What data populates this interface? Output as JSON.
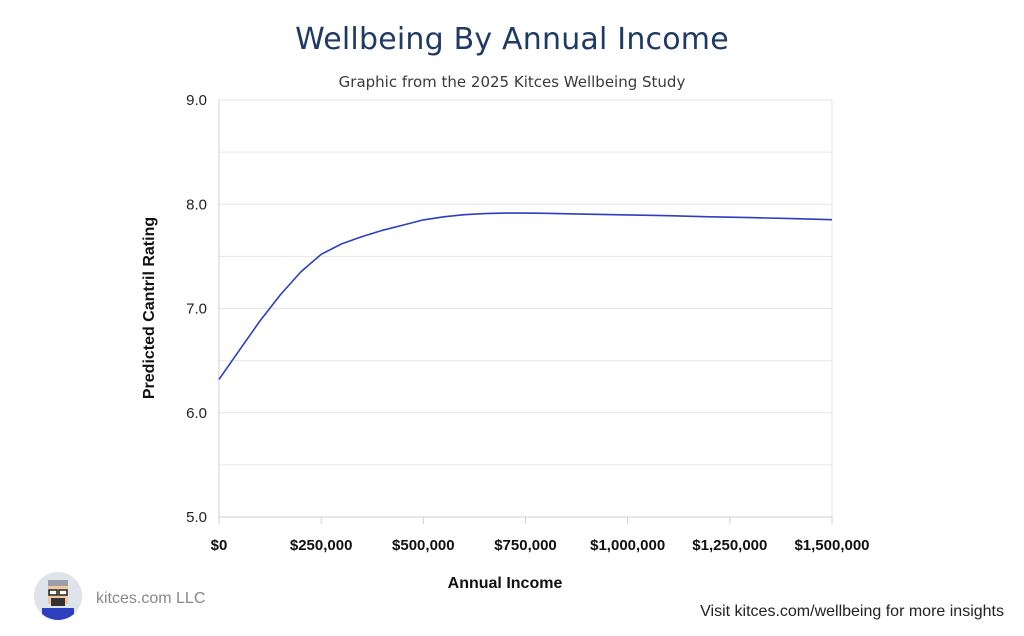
{
  "header": {
    "title": "Wellbeing By Annual Income",
    "subtitle": "Graphic from the 2025 Kitces Wellbeing Study"
  },
  "footer": {
    "brand": "kitces.com LLC",
    "cta": "Visit kitces.com/wellbeing for more insights"
  },
  "colors": {
    "line": "#2b3fbf",
    "title": "#1f3a64",
    "grid": "#e6e6e6"
  },
  "chart_data": {
    "type": "line",
    "title": "Wellbeing By Annual Income",
    "subtitle": "Graphic from the 2025 Kitces Wellbeing Study",
    "xlabel": "Annual Income",
    "ylabel": "Predicted Cantril Rating",
    "xlim": [
      0,
      1500000
    ],
    "ylim": [
      5.0,
      9.0
    ],
    "x_ticks": [
      0,
      250000,
      500000,
      750000,
      1000000,
      1250000,
      1500000
    ],
    "x_tick_labels": [
      "$0",
      "$250,000",
      "$500,000",
      "$750,000",
      "$1,000,000",
      "$1,250,000",
      "$1,500,000"
    ],
    "y_ticks": [
      5.0,
      6.0,
      7.0,
      8.0,
      9.0
    ],
    "y_tick_labels": [
      "5.0",
      "6.0",
      "7.0",
      "8.0",
      "9.0"
    ],
    "grid": true,
    "series": [
      {
        "x": [
          0,
          50000,
          100000,
          150000,
          200000,
          250000,
          300000,
          350000,
          400000,
          450000,
          500000,
          550000,
          600000,
          650000,
          700000,
          750000,
          800000,
          900000,
          1000000,
          1100000,
          1200000,
          1300000,
          1400000,
          1500000
        ],
        "y": [
          6.32,
          6.6,
          6.88,
          7.13,
          7.35,
          7.52,
          7.62,
          7.69,
          7.75,
          7.8,
          7.85,
          7.88,
          7.9,
          7.91,
          7.915,
          7.915,
          7.913,
          7.905,
          7.898,
          7.89,
          7.88,
          7.872,
          7.862,
          7.852
        ]
      }
    ]
  }
}
